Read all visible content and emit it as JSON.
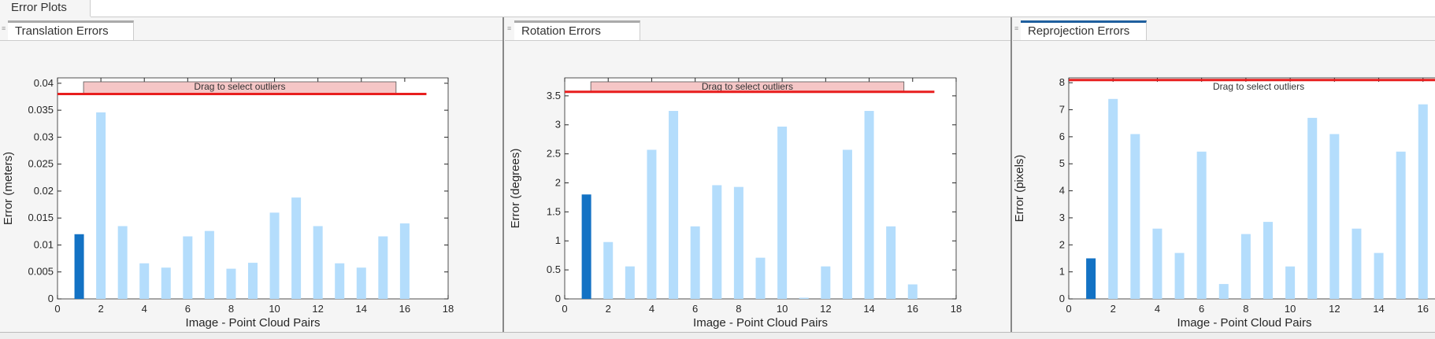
{
  "window": {
    "tab": "Error Plots"
  },
  "colors": {
    "selected_bar": "#1372c4",
    "bar": "#b4ddfc",
    "threshold": "#e81e1e",
    "outlier_box": "#f5c6c6"
  },
  "chart_data": [
    {
      "type": "bar",
      "tab": "Translation Errors",
      "xlabel": "Image - Point Cloud Pairs",
      "ylabel": "Error (meters)",
      "xlim": [
        0,
        18
      ],
      "ylim": [
        0,
        0.041
      ],
      "xticks": [
        "0",
        "2",
        "4",
        "6",
        "8",
        "10",
        "12",
        "14",
        "16",
        "18"
      ],
      "yticks": [
        "0",
        "0.005",
        "0.01",
        "0.015",
        "0.02",
        "0.025",
        "0.03",
        "0.035",
        "0.04"
      ],
      "categories": [
        1,
        2,
        3,
        4,
        5,
        6,
        7,
        8,
        9,
        10,
        11,
        12,
        13,
        14,
        15,
        16
      ],
      "values": [
        0.012,
        0.0346,
        0.0135,
        0.0066,
        0.0058,
        0.0116,
        0.0126,
        0.0056,
        0.0067,
        0.016,
        0.0188,
        0.0135,
        0.0066,
        0.0058,
        0.0116,
        0.014
      ],
      "selected": [
        1
      ],
      "threshold": 0.038,
      "outlier_label": "Drag to select outliers"
    },
    {
      "type": "bar",
      "tab": "Rotation Errors",
      "xlabel": "Image - Point Cloud Pairs",
      "ylabel": "Error (degrees)",
      "xlim": [
        0,
        18
      ],
      "ylim": [
        0,
        3.81
      ],
      "xticks": [
        "0",
        "2",
        "4",
        "6",
        "8",
        "10",
        "12",
        "14",
        "16",
        "18"
      ],
      "yticks": [
        "0",
        "0.5",
        "1",
        "1.5",
        "2",
        "2.5",
        "3",
        "3.5"
      ],
      "categories": [
        1,
        2,
        3,
        4,
        5,
        6,
        7,
        8,
        9,
        10,
        11,
        12,
        13,
        14,
        15,
        16
      ],
      "values": [
        1.8,
        0.98,
        0.56,
        2.57,
        3.24,
        1.25,
        1.96,
        1.93,
        0.71,
        2.97,
        0.02,
        0.56,
        2.57,
        3.24,
        1.25,
        0.25
      ],
      "selected": [
        1
      ],
      "threshold": 3.57,
      "outlier_label": "Drag to select outliers"
    },
    {
      "type": "bar",
      "tab": "Reprojection Errors",
      "xlabel": "Image - Point Cloud Pairs",
      "ylabel": "Error (pixels)",
      "xlim": [
        0,
        18
      ],
      "ylim": [
        0,
        8.18
      ],
      "xticks": [
        "0",
        "2",
        "4",
        "6",
        "8",
        "10",
        "12",
        "14",
        "16",
        "18"
      ],
      "yticks": [
        "0",
        "1",
        "2",
        "3",
        "4",
        "5",
        "6",
        "7",
        "8"
      ],
      "categories": [
        1,
        2,
        3,
        4,
        5,
        6,
        7,
        8,
        9,
        10,
        11,
        12,
        13,
        14,
        15,
        16
      ],
      "values": [
        1.5,
        7.4,
        6.1,
        2.6,
        1.7,
        5.45,
        0.55,
        2.4,
        2.85,
        1.2,
        6.7,
        6.1,
        2.6,
        1.7,
        5.45,
        7.2
      ],
      "selected": [
        1
      ],
      "threshold": 8.1,
      "outlier_label": "Drag to select outliers"
    }
  ]
}
